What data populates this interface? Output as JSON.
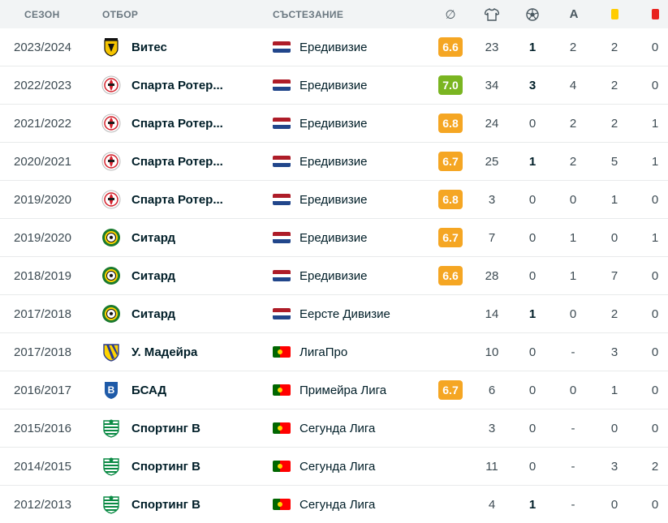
{
  "header": {
    "season": "СЕЗОН",
    "team": "ОТБОР",
    "competition": "СЪСТЕЗАНИЕ",
    "columns": [
      {
        "name": "average-rating-icon",
        "glyph": "∅"
      },
      {
        "name": "shirt-icon"
      },
      {
        "name": "ball-icon"
      },
      {
        "name": "assist-icon",
        "glyph": "A"
      },
      {
        "name": "yellow-card-icon",
        "color": "#ffcc00"
      },
      {
        "name": "red-card-icon",
        "color": "#e8221f"
      }
    ]
  },
  "colors": {
    "rating_orange": "#f5a623",
    "rating_green": "#7ab521",
    "nl_red": "#ae1c28",
    "nl_blue": "#21468b"
  },
  "rows": [
    {
      "season": "2023/2024",
      "team": "Витес",
      "crest": "vitesse",
      "flag": "nl",
      "competition": "Ередивизие",
      "rating": "6.6",
      "rating_color": "#f5a623",
      "apps": "23",
      "goals": "1",
      "goals_bold": true,
      "assists": "2",
      "yellow": "2",
      "red": "0"
    },
    {
      "season": "2022/2023",
      "team": "Спарта Ротер...",
      "crest": "sparta",
      "flag": "nl",
      "competition": "Ередивизие",
      "rating": "7.0",
      "rating_color": "#7ab521",
      "apps": "34",
      "goals": "3",
      "goals_bold": true,
      "assists": "4",
      "yellow": "2",
      "red": "0"
    },
    {
      "season": "2021/2022",
      "team": "Спарта Ротер...",
      "crest": "sparta",
      "flag": "nl",
      "competition": "Ередивизие",
      "rating": "6.8",
      "rating_color": "#f5a623",
      "apps": "24",
      "goals": "0",
      "goals_bold": false,
      "assists": "2",
      "yellow": "2",
      "red": "1"
    },
    {
      "season": "2020/2021",
      "team": "Спарта Ротер...",
      "crest": "sparta",
      "flag": "nl",
      "competition": "Ередивизие",
      "rating": "6.7",
      "rating_color": "#f5a623",
      "apps": "25",
      "goals": "1",
      "goals_bold": true,
      "assists": "2",
      "yellow": "5",
      "red": "1"
    },
    {
      "season": "2019/2020",
      "team": "Спарта Ротер...",
      "crest": "sparta",
      "flag": "nl",
      "competition": "Ередивизие",
      "rating": "6.8",
      "rating_color": "#f5a623",
      "apps": "3",
      "goals": "0",
      "goals_bold": false,
      "assists": "0",
      "yellow": "1",
      "red": "0"
    },
    {
      "season": "2019/2020",
      "team": "Ситард",
      "crest": "sittard",
      "flag": "nl",
      "competition": "Ередивизие",
      "rating": "6.7",
      "rating_color": "#f5a623",
      "apps": "7",
      "goals": "0",
      "goals_bold": false,
      "assists": "1",
      "yellow": "0",
      "red": "1"
    },
    {
      "season": "2018/2019",
      "team": "Ситард",
      "crest": "sittard",
      "flag": "nl",
      "competition": "Ередивизие",
      "rating": "6.6",
      "rating_color": "#f5a623",
      "apps": "28",
      "goals": "0",
      "goals_bold": false,
      "assists": "1",
      "yellow": "7",
      "red": "0"
    },
    {
      "season": "2017/2018",
      "team": "Ситард",
      "crest": "sittard",
      "flag": "nl",
      "competition": "Еерсте Дивизие",
      "rating": "",
      "rating_color": "",
      "apps": "14",
      "goals": "1",
      "goals_bold": true,
      "assists": "0",
      "yellow": "2",
      "red": "0"
    },
    {
      "season": "2017/2018",
      "team": "У. Мадейра",
      "crest": "madeira",
      "flag": "pt",
      "competition": "ЛигаПро",
      "rating": "",
      "rating_color": "",
      "apps": "10",
      "goals": "0",
      "goals_bold": false,
      "assists": "-",
      "yellow": "3",
      "red": "0"
    },
    {
      "season": "2016/2017",
      "team": "БСАД",
      "crest": "bsad",
      "flag": "pt",
      "competition": "Примейра Лига",
      "rating": "6.7",
      "rating_color": "#f5a623",
      "apps": "6",
      "goals": "0",
      "goals_bold": false,
      "assists": "0",
      "yellow": "1",
      "red": "0"
    },
    {
      "season": "2015/2016",
      "team": "Спортинг В",
      "crest": "sporting",
      "flag": "pt",
      "competition": "Сегунда Лига",
      "rating": "",
      "rating_color": "",
      "apps": "3",
      "goals": "0",
      "goals_bold": false,
      "assists": "-",
      "yellow": "0",
      "red": "0"
    },
    {
      "season": "2014/2015",
      "team": "Спортинг В",
      "crest": "sporting",
      "flag": "pt",
      "competition": "Сегунда Лига",
      "rating": "",
      "rating_color": "",
      "apps": "11",
      "goals": "0",
      "goals_bold": false,
      "assists": "-",
      "yellow": "3",
      "red": "2"
    },
    {
      "season": "2012/2013",
      "team": "Спортинг В",
      "crest": "sporting",
      "flag": "pt",
      "competition": "Сегунда Лига",
      "rating": "",
      "rating_color": "",
      "apps": "4",
      "goals": "1",
      "goals_bold": true,
      "assists": "-",
      "yellow": "0",
      "red": "0"
    }
  ]
}
